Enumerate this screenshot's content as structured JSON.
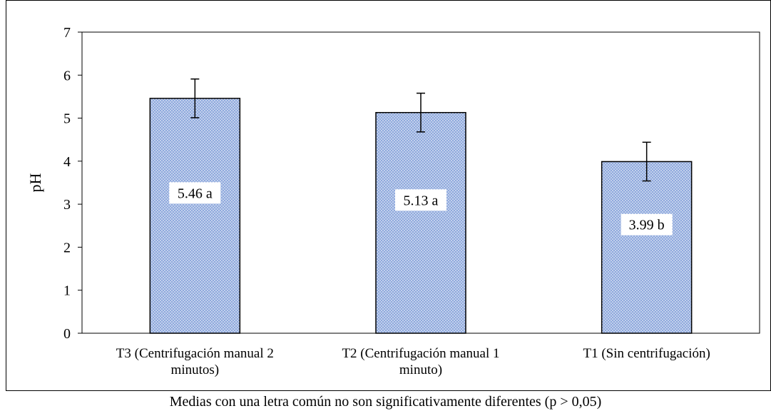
{
  "chart_data": {
    "type": "bar",
    "categories": [
      [
        "T3 (Centrifugación manual 2",
        "minutos)"
      ],
      [
        "T2 (Centrifugación manual 1",
        "minuto)"
      ],
      [
        "T1 (Sin centrifugación)"
      ]
    ],
    "values": [
      5.46,
      5.13,
      3.99
    ],
    "error": [
      0.45,
      0.45,
      0.45
    ],
    "data_labels": [
      "5.46 a",
      "5.13 a",
      "3.99 b"
    ],
    "ylabel": "pH",
    "xlabel": "",
    "ylim": [
      0,
      7
    ],
    "yticks": [
      0,
      1,
      2,
      3,
      4,
      5,
      6,
      7
    ],
    "grid": false,
    "bar_fill": "#8fa9dd",
    "bar_pattern_dot": "#ffffff",
    "bar_stroke": "#000000"
  },
  "footnote": "Medias con una letra común no son significativamente diferentes (p > 0,05)"
}
